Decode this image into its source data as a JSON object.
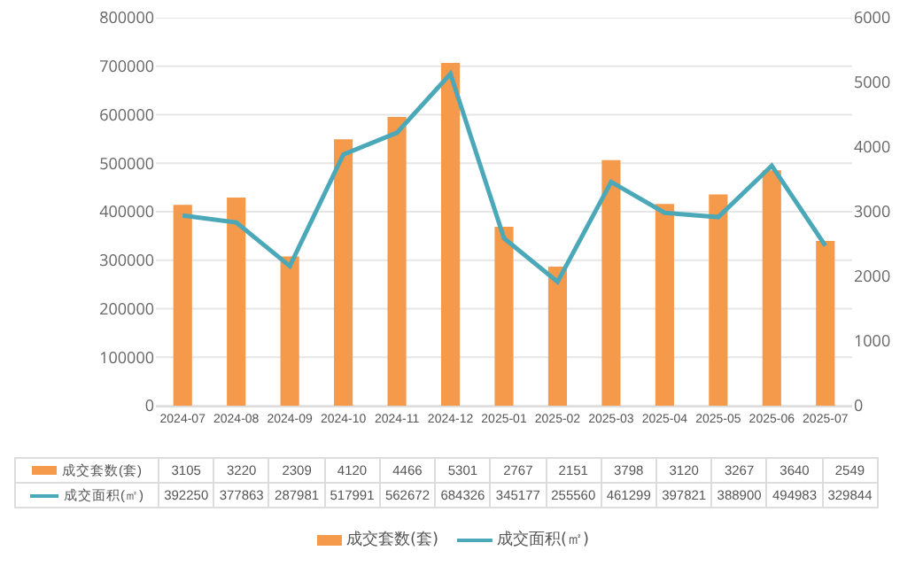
{
  "chart_data": {
    "type": "bar",
    "categories": [
      "2024-07",
      "2024-08",
      "2024-09",
      "2024-10",
      "2024-11",
      "2024-12",
      "2025-01",
      "2025-02",
      "2025-03",
      "2025-04",
      "2025-05",
      "2025-06",
      "2025-07"
    ],
    "series": [
      {
        "name": "成交套数(套)",
        "axis": "y2",
        "color": "#f59a4a",
        "values": [
          3105,
          3220,
          2309,
          4120,
          4466,
          5301,
          2767,
          2151,
          3798,
          3120,
          3267,
          3640,
          2549
        ]
      },
      {
        "name": "成交面积(㎡)",
        "type": "line",
        "color": "#4ba8b8",
        "values": [
          392250,
          377863,
          287981,
          517991,
          562672,
          684326,
          345177,
          255560,
          461299,
          397821,
          388900,
          494983,
          329844
        ]
      }
    ],
    "ylim": [
      0,
      800000
    ],
    "yticks": [
      0,
      100000,
      200000,
      300000,
      400000,
      500000,
      600000,
      700000,
      800000
    ],
    "y2lim": [
      0,
      6000
    ],
    "y2ticks": [
      0,
      1000,
      2000,
      3000,
      4000,
      5000,
      6000
    ],
    "grid": "y",
    "legend": "bottom",
    "data_labels": true,
    "marker": "none",
    "line_style": "solid"
  }
}
